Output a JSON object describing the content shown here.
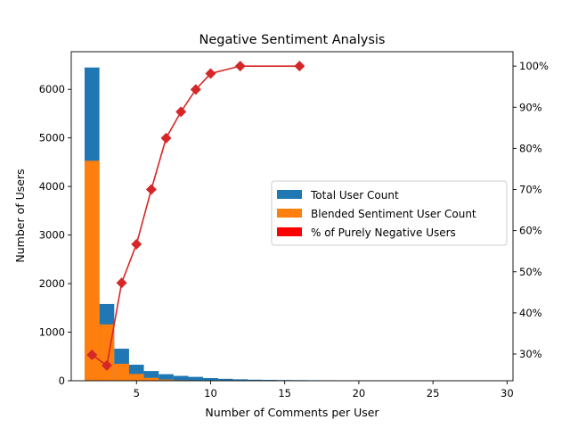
{
  "chart_data": {
    "type": "bar",
    "title": "Negative Sentiment Analysis",
    "xlabel": "Number of Comments per User",
    "ylabel": "Number of Users",
    "xlim": [
      0.6,
      30.4
    ],
    "ylim": [
      0,
      6775
    ],
    "y2lim": [
      23.5,
      103.5
    ],
    "x_ticks": [
      5,
      10,
      15,
      20,
      25,
      30
    ],
    "y_ticks": [
      0,
      1000,
      2000,
      3000,
      4000,
      5000,
      6000
    ],
    "y2_ticks": [
      30,
      40,
      50,
      60,
      70,
      80,
      90,
      100
    ],
    "y2_tick_suffix": "%",
    "legend_position": "center-right",
    "bin_width": 1,
    "series": [
      {
        "name": "Total User Count",
        "kind": "bar",
        "color": "#1f77b4",
        "x": [
          2,
          3,
          4,
          5,
          6,
          7,
          8,
          9,
          10,
          11,
          12,
          13,
          14,
          15,
          16,
          17,
          18,
          19,
          20,
          21,
          22,
          23,
          24,
          25,
          26,
          27,
          28,
          29,
          30
        ],
        "values": [
          6450,
          1580,
          660,
          330,
          200,
          135,
          100,
          80,
          55,
          40,
          30,
          22,
          18,
          14,
          12,
          10,
          8,
          7,
          6,
          5,
          4,
          4,
          3,
          3,
          2,
          2,
          2,
          2,
          2
        ]
      },
      {
        "name": "Blended Sentiment User Count",
        "kind": "bar",
        "color": "#ff7f0e",
        "x": [
          2,
          3,
          4,
          5,
          6,
          7,
          8,
          9,
          10,
          11,
          12,
          13,
          14,
          15,
          16,
          17,
          18,
          19,
          20,
          21,
          22,
          23,
          24,
          25,
          26,
          27,
          28,
          29,
          30
        ],
        "values": [
          4530,
          1160,
          350,
          140,
          60,
          25,
          12,
          5,
          1,
          0,
          0,
          0,
          0,
          0,
          0,
          0,
          0,
          0,
          0,
          0,
          0,
          0,
          0,
          0,
          0,
          0,
          0,
          0,
          0
        ]
      },
      {
        "name": "% of Purely Negative Users",
        "kind": "line",
        "axis": "right",
        "color": "#d62728",
        "legend_color": "#ff0000",
        "x": [
          2,
          3,
          4,
          5,
          6,
          7,
          8,
          9,
          10,
          12,
          16
        ],
        "values": [
          29.8,
          27.2,
          47.3,
          56.7,
          70.0,
          82.5,
          88.9,
          94.3,
          98.2,
          100.0,
          100.0
        ]
      }
    ]
  }
}
